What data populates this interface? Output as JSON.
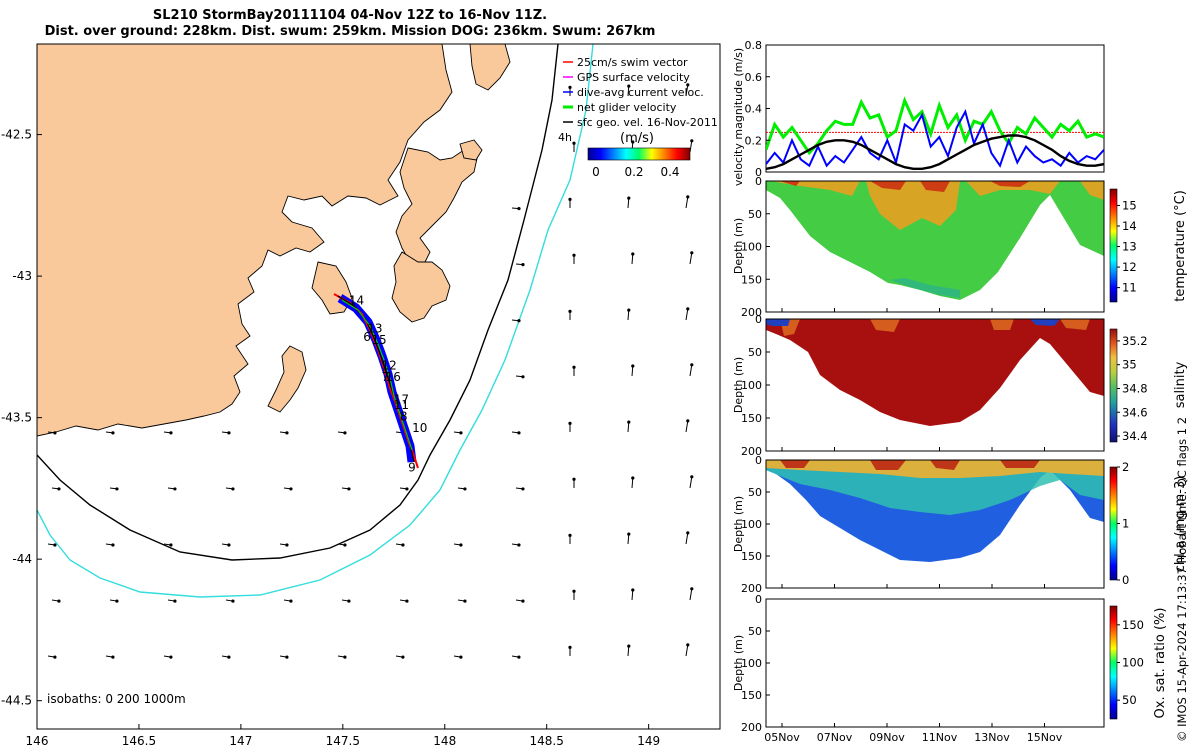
{
  "title": {
    "line1": "SL210 StormBay20111104 04-Nov 12Z to 16-Nov 11Z.",
    "line2": "Dist. over ground: 228km. Dist. swum: 259km. Mission DOG: 236km. Swum: 267km"
  },
  "credit": "© IMOS 15-Apr-2024 17:13:37 Hobart time. QC flags 1  2",
  "colors": {
    "land": "#f9c99b",
    "swim": "#ff0000",
    "gps": "#ff00ff",
    "current": "#0000ff",
    "net_glider": "#00ee00",
    "sfc_geo": "#000000",
    "isobath_200": "#000000",
    "isobath_1000": "#33dddd"
  },
  "chart_data": [
    {
      "id": "map",
      "type": "scatter",
      "xlabel": "",
      "ylabel": "",
      "xlim": [
        146.0,
        149.35
      ],
      "ylim": [
        -44.6,
        -42.18
      ],
      "x_ticks": [
        "146",
        "146.5",
        "147",
        "147.5",
        "148",
        "148.5",
        "149"
      ],
      "y_ticks": [
        "-42.5",
        "-43",
        "-43.5",
        "-44",
        "-44.5"
      ],
      "legend": [
        "25cm/s swim vector",
        "GPS surface velocity",
        "dive-avg current veloc.",
        "net glider velocity",
        "sfc geo. vel. 16-Nov-2011"
      ],
      "legend_extra": "4h",
      "colorbar_title": "(m/s)",
      "colorbar_ticks": [
        "0",
        "0.2",
        "0.4"
      ],
      "isobath_note": "isobaths: 0   200  1000m",
      "track_labels": [
        {
          "label": "14",
          "lon": 147.53,
          "lat": -43.1
        },
        {
          "label": "13",
          "lon": 147.62,
          "lat": -43.2
        },
        {
          "label": "15",
          "lon": 147.64,
          "lat": -43.24
        },
        {
          "label": "6",
          "lon": 147.6,
          "lat": -43.23
        },
        {
          "label": "12",
          "lon": 147.69,
          "lat": -43.33
        },
        {
          "label": "16",
          "lon": 147.71,
          "lat": -43.37
        },
        {
          "label": "7",
          "lon": 147.69,
          "lat": -43.37
        },
        {
          "label": "17",
          "lon": 147.75,
          "lat": -43.45
        },
        {
          "label": "11",
          "lon": 147.75,
          "lat": -43.47
        },
        {
          "label": "8",
          "lon": 147.78,
          "lat": -43.51
        },
        {
          "label": "10",
          "lon": 147.84,
          "lat": -43.55
        },
        {
          "label": "9",
          "lon": 147.82,
          "lat": -43.69
        }
      ],
      "track": [
        [
          147.43,
          -43.09
        ],
        [
          147.5,
          -43.12
        ],
        [
          147.55,
          -43.16
        ],
        [
          147.6,
          -43.21
        ],
        [
          147.63,
          -43.27
        ],
        [
          147.66,
          -43.32
        ],
        [
          147.68,
          -43.37
        ],
        [
          147.72,
          -43.42
        ],
        [
          147.74,
          -43.47
        ],
        [
          147.77,
          -43.52
        ],
        [
          147.79,
          -43.58
        ],
        [
          147.8,
          -43.63
        ],
        [
          147.81,
          -43.68
        ]
      ]
    },
    {
      "id": "velocity",
      "type": "line",
      "ylabel": "velocity magnitude (m/s)",
      "ylim": [
        0,
        0.8
      ],
      "y_ticks": [
        "0",
        "0.2",
        "0.4",
        "0.6",
        "0.8"
      ],
      "series": [
        {
          "name": "net glider velocity",
          "color": "#00ee00",
          "values": [
            0.14,
            0.3,
            0.22,
            0.28,
            0.2,
            0.12,
            0.18,
            0.26,
            0.32,
            0.3,
            0.3,
            0.44,
            0.34,
            0.36,
            0.22,
            0.26,
            0.45,
            0.33,
            0.38,
            0.24,
            0.42,
            0.28,
            0.36,
            0.2,
            0.32,
            0.3,
            0.38,
            0.26,
            0.18,
            0.28,
            0.24,
            0.34,
            0.28,
            0.22,
            0.3,
            0.26,
            0.32,
            0.22,
            0.24,
            0.22
          ]
        },
        {
          "name": "dive-avg current",
          "color": "#0000ff",
          "values": [
            0.05,
            0.12,
            0.06,
            0.2,
            0.08,
            0.04,
            0.16,
            0.04,
            0.1,
            0.06,
            0.14,
            0.22,
            0.12,
            0.08,
            0.2,
            0.06,
            0.3,
            0.26,
            0.36,
            0.16,
            0.22,
            0.1,
            0.28,
            0.38,
            0.18,
            0.3,
            0.12,
            0.04,
            0.2,
            0.06,
            0.16,
            0.1,
            0.06,
            0.08,
            0.04,
            0.12,
            0.06,
            0.1,
            0.08,
            0.14
          ]
        },
        {
          "name": "sfc geo",
          "color": "#000000",
          "values": [
            0.02,
            0.03,
            0.05,
            0.08,
            0.11,
            0.14,
            0.17,
            0.19,
            0.2,
            0.2,
            0.19,
            0.17,
            0.14,
            0.11,
            0.08,
            0.05,
            0.03,
            0.02,
            0.02,
            0.03,
            0.05,
            0.08,
            0.11,
            0.14,
            0.17,
            0.19,
            0.21,
            0.22,
            0.23,
            0.23,
            0.22,
            0.2,
            0.17,
            0.14,
            0.1,
            0.07,
            0.05,
            0.04,
            0.04,
            0.05
          ]
        }
      ],
      "reference_line": {
        "value": 0.25,
        "color": "#ff0000"
      }
    },
    {
      "id": "temperature",
      "type": "heatmap",
      "ylabel": "Depth (m)",
      "clabel": "temperature (°C)",
      "ylim": [
        0,
        200
      ],
      "y_ticks": [
        "0",
        "50",
        "100",
        "150",
        "200"
      ],
      "c_ticks": [
        "11",
        "12",
        "13",
        "14",
        "15"
      ],
      "clim": [
        10.3,
        15.8
      ]
    },
    {
      "id": "salinity",
      "type": "heatmap",
      "ylabel": "Depth (m)",
      "clabel": "salinity",
      "ylim": [
        0,
        200
      ],
      "y_ticks": [
        "0",
        "50",
        "100",
        "150",
        "200"
      ],
      "c_ticks": [
        "34.4",
        "34.6",
        "34.8",
        "35",
        "35.2"
      ],
      "clim": [
        34.35,
        35.3
      ]
    },
    {
      "id": "chla",
      "type": "heatmap",
      "ylabel": "Depth (m)",
      "clabel": "chl-a (mg m-3)",
      "ylim": [
        0,
        200
      ],
      "y_ticks": [
        "0",
        "50",
        "100",
        "150",
        "200"
      ],
      "c_ticks": [
        "0",
        "1",
        "2"
      ],
      "clim": [
        0,
        2
      ]
    },
    {
      "id": "oxygen",
      "type": "heatmap",
      "ylabel": "Depth (m)",
      "clabel": "Ox. sat. ratio (%)",
      "ylim": [
        0,
        200
      ],
      "y_ticks": [
        "0",
        "50",
        "100",
        "150",
        "200"
      ],
      "c_ticks": [
        "50",
        "100",
        "150"
      ],
      "clim": [
        25,
        175
      ],
      "x_ticks": [
        "05Nov",
        "07Nov",
        "09Nov",
        "11Nov",
        "13Nov",
        "15Nov"
      ]
    }
  ]
}
